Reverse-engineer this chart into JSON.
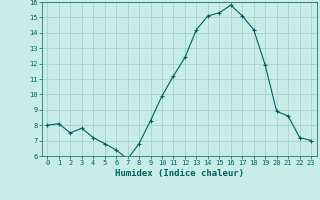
{
  "x": [
    0,
    1,
    2,
    3,
    4,
    5,
    6,
    7,
    8,
    9,
    10,
    11,
    12,
    13,
    14,
    15,
    16,
    17,
    18,
    19,
    20,
    21,
    22,
    23
  ],
  "y": [
    8.0,
    8.1,
    7.5,
    7.8,
    7.2,
    6.8,
    6.4,
    5.8,
    6.8,
    8.3,
    9.9,
    11.2,
    12.4,
    14.2,
    15.1,
    15.3,
    15.8,
    15.1,
    14.2,
    11.9,
    8.9,
    8.6,
    7.2,
    7.0
  ],
  "line_color": "#006060",
  "marker": "+",
  "marker_size": 3,
  "bg_color": "#c8ece8",
  "grid_color": "#a0ccc8",
  "xlabel": "Humidex (Indice chaleur)",
  "ylim": [
    6,
    16
  ],
  "xlim": [
    -0.5,
    23.5
  ],
  "yticks": [
    6,
    7,
    8,
    9,
    10,
    11,
    12,
    13,
    14,
    15,
    16
  ],
  "xticks": [
    0,
    1,
    2,
    3,
    4,
    5,
    6,
    7,
    8,
    9,
    10,
    11,
    12,
    13,
    14,
    15,
    16,
    17,
    18,
    19,
    20,
    21,
    22,
    23
  ],
  "tick_color": "#006060",
  "label_color": "#006060",
  "font_family": "monospace",
  "tick_fontsize": 5,
  "xlabel_fontsize": 6.5,
  "linewidth": 0.8,
  "markeredgewidth": 0.8
}
